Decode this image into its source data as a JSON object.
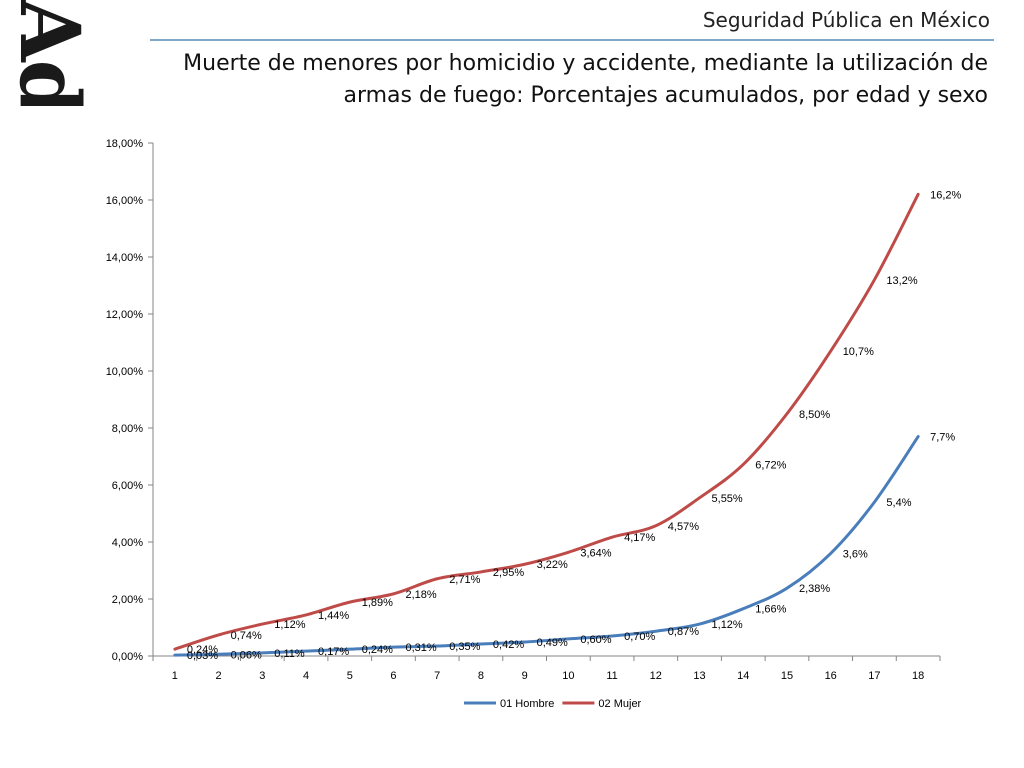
{
  "header": {
    "logo_text": "AdA",
    "section": "Seguridad Pública en México",
    "title": "Muerte de menores por homicidio y accidente, mediante la utilización de armas de fuego: Porcentajes acumulados, por edad y sexo"
  },
  "chart_data": {
    "type": "line",
    "title": "",
    "xlabel": "",
    "ylabel": "",
    "ylim": [
      0,
      18
    ],
    "y_tick_labels": [
      "0,00%",
      "2,00%",
      "4,00%",
      "6,00%",
      "8,00%",
      "10,00%",
      "12,00%",
      "14,00%",
      "16,00%",
      "18,00%"
    ],
    "x": [
      "1",
      "2",
      "3",
      "4",
      "5",
      "6",
      "7",
      "8",
      "9",
      "10",
      "11",
      "12",
      "13",
      "14",
      "15",
      "16",
      "17",
      "18"
    ],
    "grid": false,
    "legend_position": "bottom",
    "series": [
      {
        "name": "01 Hombre",
        "color": "#4a7ebb",
        "values": [
          0.03,
          0.06,
          0.11,
          0.17,
          0.24,
          0.31,
          0.35,
          0.42,
          0.49,
          0.6,
          0.7,
          0.87,
          1.12,
          1.66,
          2.38,
          3.6,
          5.4,
          7.7
        ],
        "labels": [
          "0,03%",
          "0,06%",
          "0,11%",
          "0,17%",
          "0,24%",
          "0,31%",
          "0,35%",
          "0,42%",
          "0,49%",
          "0,60%",
          "0,70%",
          "0,87%",
          "1,12%",
          "1,66%",
          "2,38%",
          "3,6%",
          "5,4%",
          "7,7%"
        ]
      },
      {
        "name": "02 Mujer",
        "color": "#be4b48",
        "values": [
          0.24,
          0.74,
          1.12,
          1.44,
          1.89,
          2.18,
          2.71,
          2.95,
          3.22,
          3.64,
          4.17,
          4.57,
          5.55,
          6.72,
          8.5,
          10.7,
          13.2,
          16.2
        ],
        "labels": [
          "0,24%",
          "0,74%",
          "1,12%",
          "1,44%",
          "1,89%",
          "2,18%",
          "2,71%",
          "2,95%",
          "3,22%",
          "3,64%",
          "4,17%",
          "4,57%",
          "5,55%",
          "6,72%",
          "8,50%",
          "10,7%",
          "13,2%",
          "16,2%"
        ]
      }
    ]
  }
}
